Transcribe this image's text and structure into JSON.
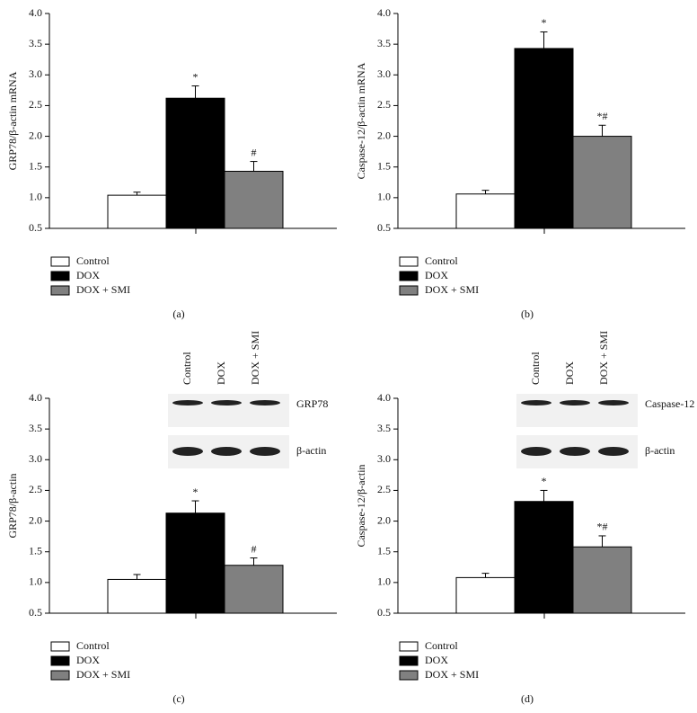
{
  "chart_data": [
    {
      "type": "bar",
      "panel": "(a)",
      "ylabel": "GRP78/β-actin mRNA",
      "ylim": [
        0.5,
        4
      ],
      "yticks": [
        0.5,
        {
          "value": 1,
          "label": "1.0"
        },
        1.5,
        {
          "value": 2,
          "label": "2.0"
        },
        2.5,
        {
          "value": 3,
          "label": "3.0"
        },
        3.5,
        {
          "value": 4,
          "label": "4.0"
        }
      ],
      "series": [
        {
          "name": "Control",
          "color": "#ffffff",
          "values": [
            1.04
          ],
          "errors": [
            0.05
          ]
        },
        {
          "name": "DOX",
          "color": "#000000",
          "values": [
            2.62
          ],
          "errors": [
            0.2
          ],
          "annotation": "*"
        },
        {
          "name": "DOX + SMI",
          "color": "#808080",
          "values": [
            1.43
          ],
          "errors": [
            0.16
          ],
          "annotation": "#"
        }
      ]
    },
    {
      "type": "bar",
      "panel": "(b)",
      "ylabel": "Caspase-12/β-actin mRNA",
      "ylim": [
        0.5,
        4
      ],
      "yticks": [
        0.5,
        {
          "value": 1,
          "label": "1.0"
        },
        1.5,
        {
          "value": 2,
          "label": "2.0"
        },
        2.5,
        {
          "value": 3,
          "label": "3.0"
        },
        3.5,
        {
          "value": 4,
          "label": "4.0"
        }
      ],
      "series": [
        {
          "name": "Control",
          "color": "#ffffff",
          "values": [
            1.06
          ],
          "errors": [
            0.06
          ]
        },
        {
          "name": "DOX",
          "color": "#000000",
          "values": [
            3.43
          ],
          "errors": [
            0.27
          ],
          "annotation": "*"
        },
        {
          "name": "DOX + SMI",
          "color": "#808080",
          "values": [
            2.0
          ],
          "errors": [
            0.18
          ],
          "annotation": "*#"
        }
      ]
    },
    {
      "type": "bar",
      "panel": "(c)",
      "ylabel": "GRP78/β-actin",
      "ylim": [
        0.5,
        4
      ],
      "yticks": [
        0.5,
        {
          "value": 1,
          "label": "1.0"
        },
        1.5,
        {
          "value": 2,
          "label": "2.0"
        },
        2.5,
        {
          "value": 3,
          "label": "3.0"
        },
        3.5,
        {
          "value": 4,
          "label": "4.0"
        }
      ],
      "blot": {
        "lanes": [
          "Control",
          "DOX",
          "DOX + SMI"
        ],
        "bands": [
          "GRP78",
          "β-actin"
        ]
      },
      "series": [
        {
          "name": "Control",
          "color": "#ffffff",
          "values": [
            1.05
          ],
          "errors": [
            0.08
          ]
        },
        {
          "name": "DOX",
          "color": "#000000",
          "values": [
            2.13
          ],
          "errors": [
            0.2
          ],
          "annotation": "*"
        },
        {
          "name": "DOX + SMI",
          "color": "#808080",
          "values": [
            1.28
          ],
          "errors": [
            0.12
          ],
          "annotation": "#"
        }
      ]
    },
    {
      "type": "bar",
      "panel": "(d)",
      "ylabel": "Caspase-12/β-actin",
      "ylim": [
        0.5,
        4
      ],
      "yticks": [
        0.5,
        {
          "value": 1,
          "label": "1.0"
        },
        1.5,
        {
          "value": 2,
          "label": "2.0"
        },
        2.5,
        {
          "value": 3,
          "label": "3.0"
        },
        3.5,
        {
          "value": 4,
          "label": "4.0"
        }
      ],
      "blot": {
        "lanes": [
          "Control",
          "DOX",
          "DOX + SMI"
        ],
        "bands": [
          "Caspase-12",
          "β-actin"
        ]
      },
      "series": [
        {
          "name": "Control",
          "color": "#ffffff",
          "values": [
            1.08
          ],
          "errors": [
            0.07
          ]
        },
        {
          "name": "DOX",
          "color": "#000000",
          "values": [
            2.32
          ],
          "errors": [
            0.18
          ],
          "annotation": "*"
        },
        {
          "name": "DOX + SMI",
          "color": "#808080",
          "values": [
            1.58
          ],
          "errors": [
            0.18
          ],
          "annotation": "*#"
        }
      ]
    }
  ]
}
